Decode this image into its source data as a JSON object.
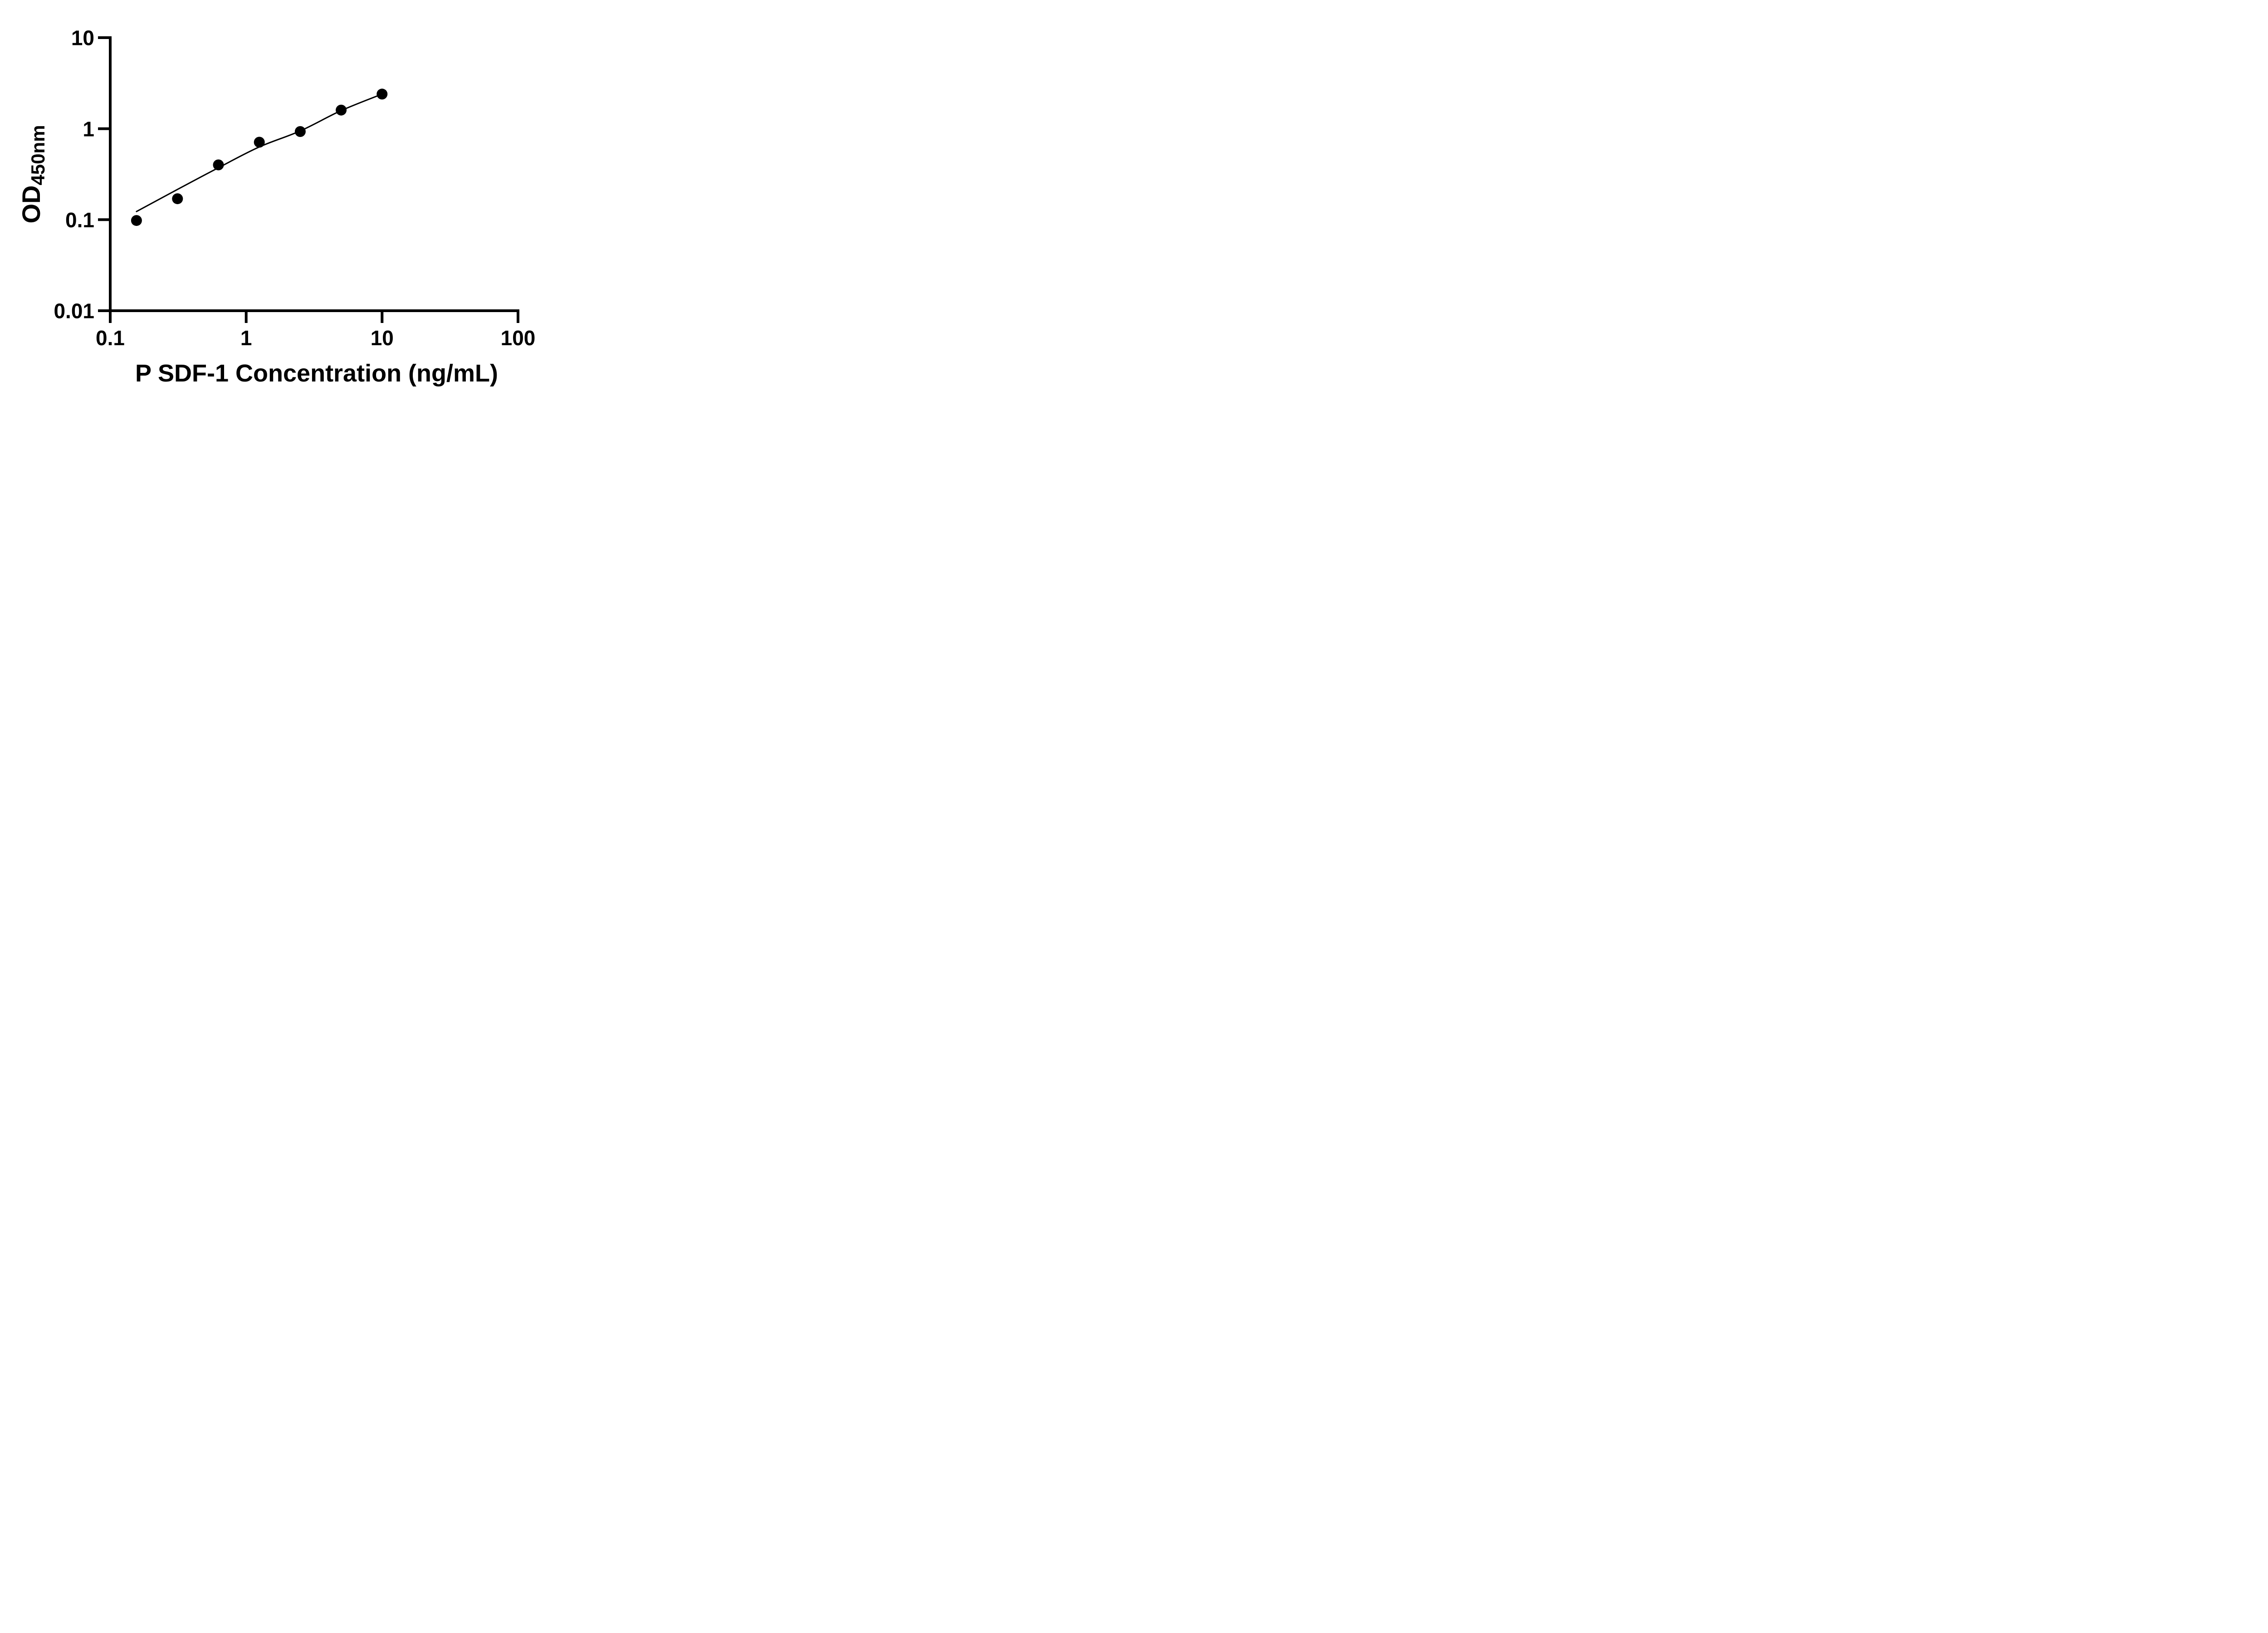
{
  "figure": {
    "background_color": "#ffffff",
    "foreground_color": "#000000"
  },
  "chart_data": {
    "type": "scatter",
    "title": "",
    "xlabel": "P SDF-1 Concentration (ng/mL)",
    "ylabel_main": "OD",
    "ylabel_sub": "450nm",
    "x_scale": "log",
    "y_scale": "log",
    "xlim": [
      0.1,
      100
    ],
    "ylim": [
      0.01,
      10
    ],
    "grid": false,
    "legend_position": "none",
    "x_ticks": [
      {
        "value": 0.1,
        "label": "0.1"
      },
      {
        "value": 1,
        "label": "1"
      },
      {
        "value": 10,
        "label": "10"
      },
      {
        "value": 100,
        "label": "100"
      }
    ],
    "y_ticks": [
      {
        "value": 10,
        "label": "10"
      },
      {
        "value": 1,
        "label": "1"
      },
      {
        "value": 0.1,
        "label": "0.1"
      },
      {
        "value": 0.01,
        "label": "0.01"
      }
    ],
    "series": [
      {
        "name": "standard-points",
        "marker": "circle",
        "color": "#000000",
        "points": [
          {
            "x": 0.156,
            "y": 0.098
          },
          {
            "x": 0.3125,
            "y": 0.17
          },
          {
            "x": 0.625,
            "y": 0.4
          },
          {
            "x": 1.25,
            "y": 0.71
          },
          {
            "x": 2.5,
            "y": 0.93
          },
          {
            "x": 5,
            "y": 1.6
          },
          {
            "x": 10,
            "y": 2.4
          }
        ]
      }
    ],
    "fit_curve": {
      "name": "fitted-standard-curve",
      "color": "#000000",
      "points": [
        {
          "x": 0.156,
          "y": 0.123
        },
        {
          "x": 0.3125,
          "y": 0.215
        },
        {
          "x": 0.625,
          "y": 0.372
        },
        {
          "x": 1.25,
          "y": 0.63
        },
        {
          "x": 2.5,
          "y": 0.945
        },
        {
          "x": 5,
          "y": 1.58
        },
        {
          "x": 10,
          "y": 2.4
        }
      ]
    }
  }
}
